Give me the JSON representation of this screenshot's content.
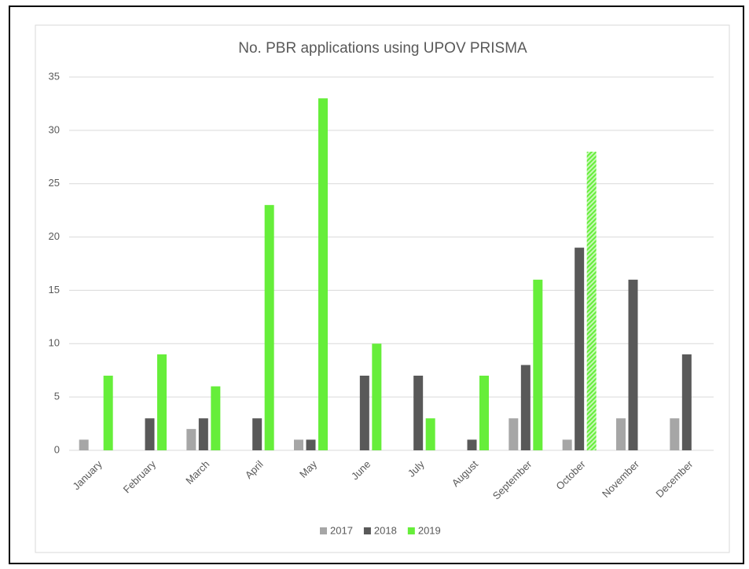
{
  "chart_data": {
    "type": "bar",
    "title": "No. PBR applications using UPOV PRISMA",
    "categories": [
      "January",
      "February",
      "March",
      "April",
      "May",
      "June",
      "July",
      "August",
      "September",
      "October",
      "November",
      "December"
    ],
    "series": [
      {
        "name": "2017",
        "color": "#a6a6a6",
        "values": [
          1,
          null,
          2,
          null,
          1,
          null,
          null,
          null,
          3,
          1,
          3,
          3
        ]
      },
      {
        "name": "2018",
        "color": "#595959",
        "values": [
          null,
          3,
          3,
          3,
          1,
          7,
          7,
          1,
          8,
          19,
          16,
          9
        ]
      },
      {
        "name": "2019",
        "color": "#66ee3a",
        "values": [
          7,
          9,
          6,
          23,
          33,
          10,
          3,
          7,
          16,
          28,
          null,
          null
        ],
        "hatched": [
          9
        ]
      }
    ],
    "ylim": [
      0,
      35
    ],
    "yticks": [
      0,
      5,
      10,
      15,
      20,
      25,
      30,
      35
    ],
    "grid": true,
    "legend": "bottom"
  }
}
